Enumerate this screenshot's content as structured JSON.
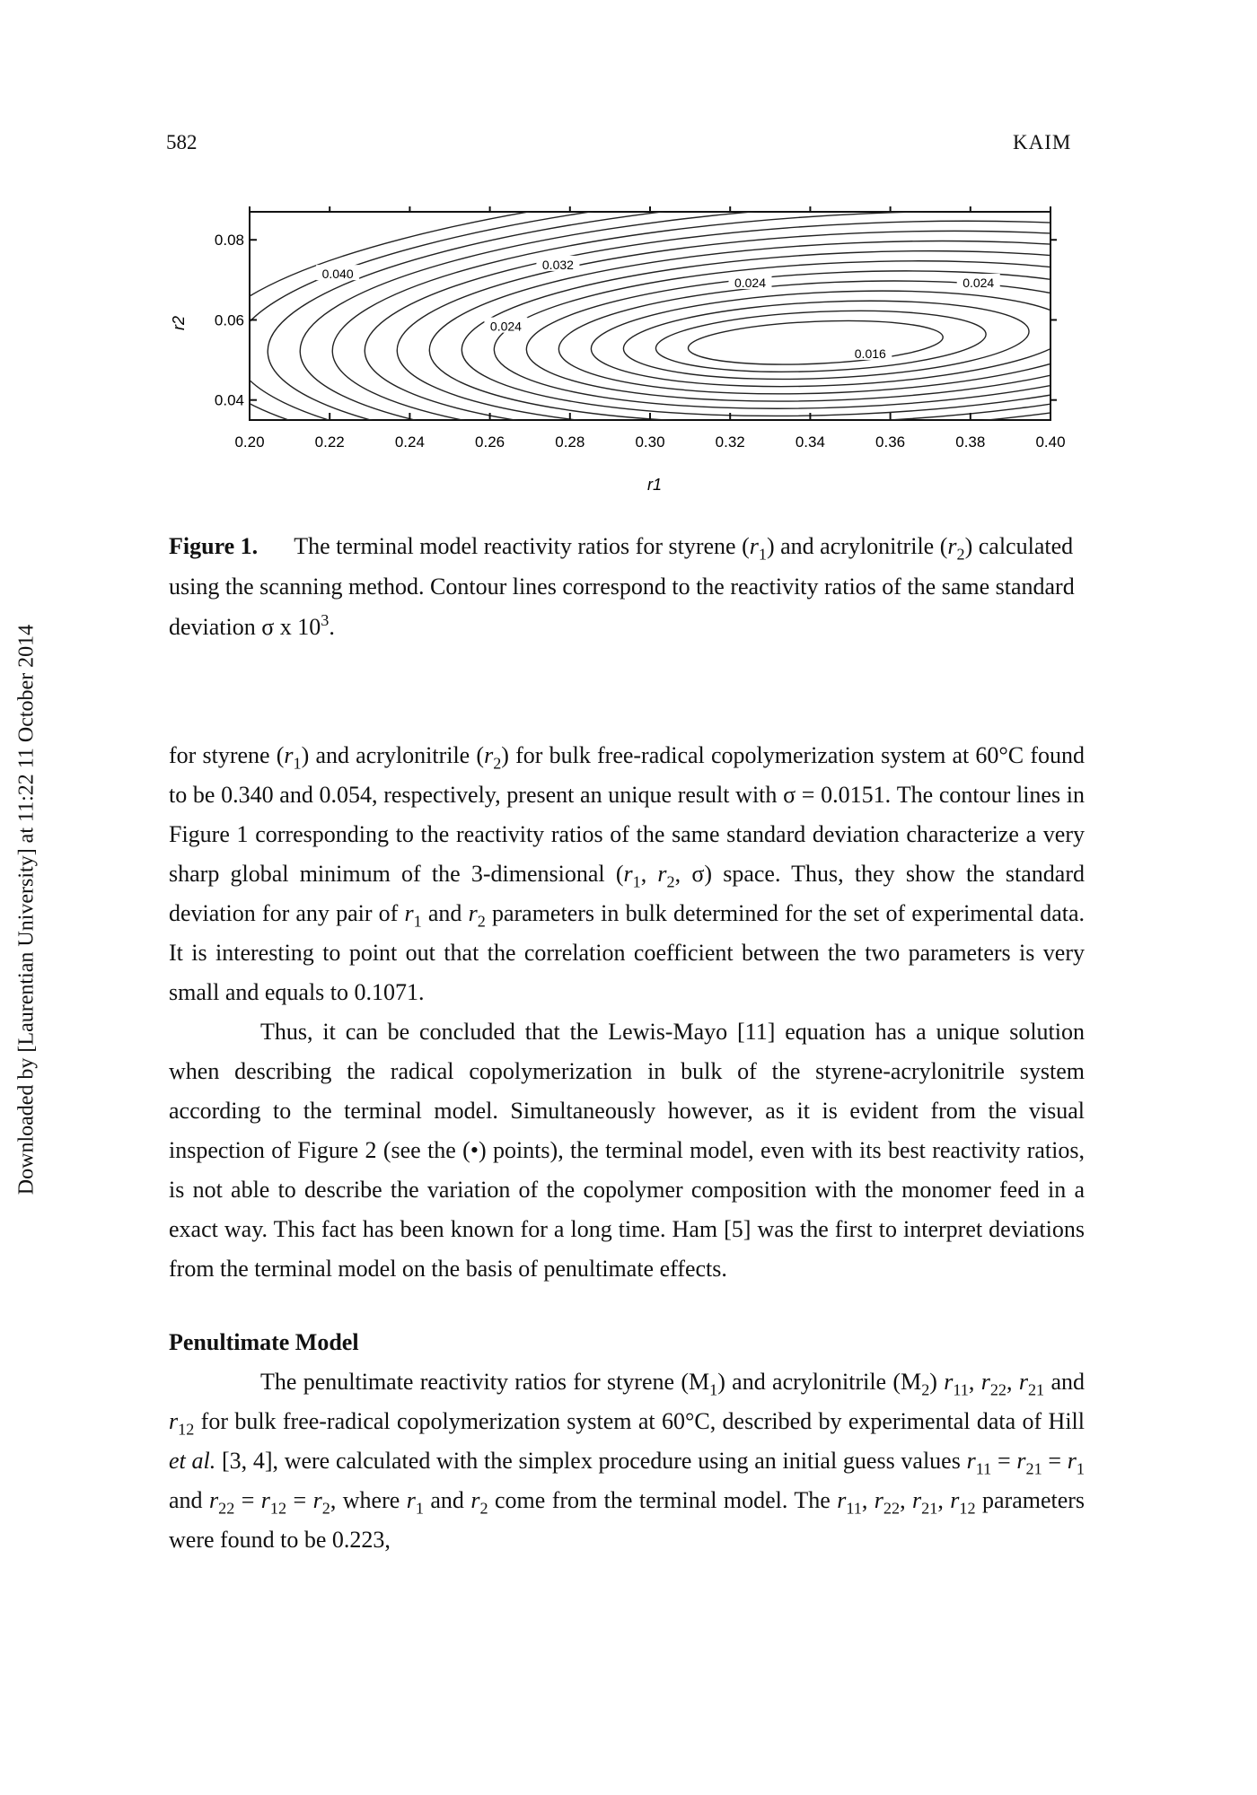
{
  "header": {
    "page_number": "582",
    "running_head": "KAIM"
  },
  "side_note": "Downloaded by [Laurentian University] at 11:22 11 October 2014",
  "figure": {
    "caption_label": "Figure 1.",
    "caption_parts": [
      "The terminal model reactivity ratios for styrene (",
      "r",
      "1",
      ") and acrylonitrile (",
      "r",
      "2",
      ") calculated using the scanning method. Contour lines correspond to the reactivity ratios of the same standard deviation σ x 10",
      "3",
      "."
    ]
  },
  "chart_data": {
    "type": "contour",
    "xlabel": "r1",
    "ylabel": "r2",
    "xlim": [
      0.2,
      0.4
    ],
    "ylim": [
      0.035,
      0.087
    ],
    "x_ticks": [
      "0.20",
      "0.22",
      "0.24",
      "0.26",
      "0.28",
      "0.30",
      "0.32",
      "0.34",
      "0.36",
      "0.38",
      "0.40"
    ],
    "y_ticks": [
      "0.04",
      "0.06",
      "0.08"
    ],
    "minimum": {
      "x": 0.34,
      "y": 0.054
    },
    "contour_labels": [
      {
        "text": "0.040",
        "x": 0.222,
        "y": 0.0715
      },
      {
        "text": "0.032",
        "x": 0.277,
        "y": 0.0738
      },
      {
        "text": "0.024",
        "x": 0.325,
        "y": 0.0693
      },
      {
        "text": "0.024",
        "x": 0.382,
        "y": 0.0693
      },
      {
        "text": "0.024",
        "x": 0.264,
        "y": 0.0584
      },
      {
        "text": "0.016",
        "x": 0.355,
        "y": 0.0516
      }
    ],
    "grid": false,
    "legend": "none"
  },
  "body": {
    "p1": [
      {
        "t": "for styrene ("
      },
      {
        "t": "r",
        "s": "i"
      },
      {
        "t": "1",
        "s": "sub"
      },
      {
        "t": ") and acrylonitrile ("
      },
      {
        "t": "r",
        "s": "i"
      },
      {
        "t": "2",
        "s": "sub"
      },
      {
        "t": ") for bulk free-radical copolymerization system at 60°C found to be 0.340 and 0.054, respectively, present an unique result with σ = 0.0151. The contour lines in Figure 1 corresponding to the reactivity ratios of the same standard deviation characterize a very sharp global minimum of the 3-dimensional ("
      },
      {
        "t": "r",
        "s": "i"
      },
      {
        "t": "1",
        "s": "sub"
      },
      {
        "t": ", "
      },
      {
        "t": "r",
        "s": "i"
      },
      {
        "t": "2",
        "s": "sub"
      },
      {
        "t": ", σ) space. Thus, they show the standard deviation for any pair of "
      },
      {
        "t": "r",
        "s": "i"
      },
      {
        "t": "1",
        "s": "sub"
      },
      {
        "t": " and "
      },
      {
        "t": "r",
        "s": "i"
      },
      {
        "t": "2",
        "s": "sub"
      },
      {
        "t": " parameters in bulk determined for the set of experimental data. It is interesting to point out that the correlation coefficient between the two parameters is very small and equals to 0.1071."
      }
    ],
    "p2": [
      {
        "t": "Thus, it can be concluded that the Lewis-Mayo [11] equation has a unique solution when describing the radical copolymerization in bulk of the styrene-acrylonitrile system according to the terminal model. Simultaneously however, as it is evident from the visual inspection of Figure 2 (see the (•) points), the terminal model, even with its best reactivity ratios, is not able to describe the variation of the copolymer composition with the monomer feed in a exact way. This fact has been known for a long time. Ham [5] was the first to interpret deviations from the terminal model on the basis of penultimate effects."
      }
    ],
    "section_heading": "Penultimate Model",
    "p3": [
      {
        "t": "The penultimate reactivity ratios for styrene (M"
      },
      {
        "t": "1",
        "s": "sub"
      },
      {
        "t": ") and acrylonitrile (M"
      },
      {
        "t": "2",
        "s": "sub"
      },
      {
        "t": ") "
      },
      {
        "t": "r",
        "s": "i"
      },
      {
        "t": "11",
        "s": "sub"
      },
      {
        "t": ", "
      },
      {
        "t": "r",
        "s": "i"
      },
      {
        "t": "22",
        "s": "sub"
      },
      {
        "t": ", "
      },
      {
        "t": "r",
        "s": "i"
      },
      {
        "t": "21",
        "s": "sub"
      },
      {
        "t": " and "
      },
      {
        "t": "r",
        "s": "i"
      },
      {
        "t": "12",
        "s": "sub"
      },
      {
        "t": " for bulk free-radical copolymerization system at 60°C, described by experimental data of Hill "
      },
      {
        "t": "et al.",
        "s": "i"
      },
      {
        "t": " [3, 4], were calculated with the simplex procedure using an initial guess values "
      },
      {
        "t": "r",
        "s": "i"
      },
      {
        "t": "11",
        "s": "sub"
      },
      {
        "t": " = "
      },
      {
        "t": "r",
        "s": "i"
      },
      {
        "t": "21",
        "s": "sub"
      },
      {
        "t": " = "
      },
      {
        "t": "r",
        "s": "i"
      },
      {
        "t": "1",
        "s": "sub"
      },
      {
        "t": " and "
      },
      {
        "t": "r",
        "s": "i"
      },
      {
        "t": "22",
        "s": "sub"
      },
      {
        "t": " = "
      },
      {
        "t": "r",
        "s": "i"
      },
      {
        "t": "12",
        "s": "sub"
      },
      {
        "t": " = "
      },
      {
        "t": "r",
        "s": "i"
      },
      {
        "t": "2",
        "s": "sub"
      },
      {
        "t": ", where "
      },
      {
        "t": "r",
        "s": "i"
      },
      {
        "t": "1",
        "s": "sub"
      },
      {
        "t": " and "
      },
      {
        "t": "r",
        "s": "i"
      },
      {
        "t": "2",
        "s": "sub"
      },
      {
        "t": " come from the terminal model. The "
      },
      {
        "t": "r",
        "s": "i"
      },
      {
        "t": "11",
        "s": "sub"
      },
      {
        "t": ", "
      },
      {
        "t": "r",
        "s": "i"
      },
      {
        "t": "22",
        "s": "sub"
      },
      {
        "t": ", "
      },
      {
        "t": "r",
        "s": "i"
      },
      {
        "t": "21",
        "s": "sub"
      },
      {
        "t": ", "
      },
      {
        "t": "r",
        "s": "i"
      },
      {
        "t": "12",
        "s": "sub"
      },
      {
        "t": " parameters were found to be 0.223,"
      }
    ]
  }
}
